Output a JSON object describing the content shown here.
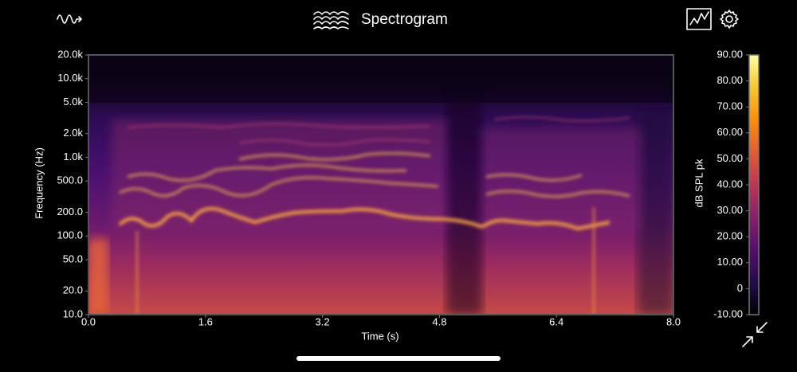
{
  "header": {
    "title": "Spectrogram"
  },
  "spectrogram": {
    "y_axis_label": "Frequency (Hz)",
    "x_axis_label": "Time (s)",
    "ylim": [
      10,
      20000
    ],
    "xlim": [
      0,
      8
    ],
    "yticks": [
      {
        "value": 20000,
        "label": "20.0k"
      },
      {
        "value": 10000,
        "label": "10.0k"
      },
      {
        "value": 5000,
        "label": "5.0k"
      },
      {
        "value": 2000,
        "label": "2.0k"
      },
      {
        "value": 1000,
        "label": "1.0k"
      },
      {
        "value": 500,
        "label": "500.0"
      },
      {
        "value": 200,
        "label": "200.0"
      },
      {
        "value": 100,
        "label": "100.0"
      },
      {
        "value": 50,
        "label": "50.0"
      },
      {
        "value": 20,
        "label": "20.0"
      },
      {
        "value": 10,
        "label": "10.0"
      }
    ],
    "xticks": [
      {
        "value": 0,
        "label": "0.0"
      },
      {
        "value": 1.6,
        "label": "1.6"
      },
      {
        "value": 3.2,
        "label": "3.2"
      },
      {
        "value": 4.8,
        "label": "4.8"
      },
      {
        "value": 6.4,
        "label": "6.4"
      },
      {
        "value": 8,
        "label": "8.0"
      }
    ],
    "log_y": true
  },
  "colorbar": {
    "label": "dB SPL pk",
    "lim": [
      -10,
      90
    ],
    "ticks": [
      {
        "value": 90,
        "label": "90.00"
      },
      {
        "value": 80,
        "label": "80.00"
      },
      {
        "value": 70,
        "label": "70.00"
      },
      {
        "value": 60,
        "label": "60.00"
      },
      {
        "value": 50,
        "label": "50.00"
      },
      {
        "value": 40,
        "label": "40.00"
      },
      {
        "value": 30,
        "label": "30.00"
      },
      {
        "value": 20,
        "label": "20.00"
      },
      {
        "value": 10,
        "label": "10.00"
      },
      {
        "value": 0,
        "label": "0"
      },
      {
        "value": -10,
        "label": "-10.00"
      }
    ]
  }
}
